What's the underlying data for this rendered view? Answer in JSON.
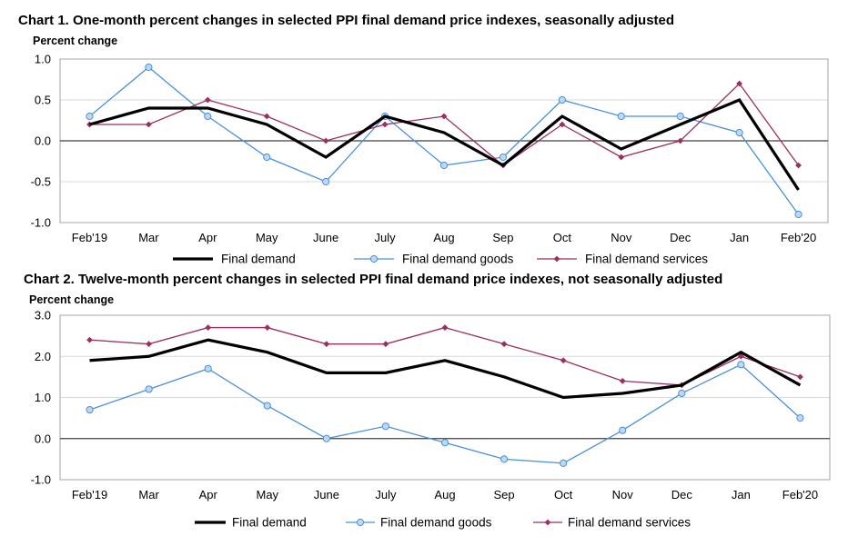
{
  "chart_data": [
    {
      "type": "line",
      "title": "Chart 1. One-month percent changes in selected PPI final demand price indexes, seasonally adjusted",
      "ylabel": "Percent change",
      "xlabel": "",
      "ylim": [
        -1.0,
        1.0
      ],
      "yticks": [
        1.0,
        0.5,
        0.0,
        -0.5,
        -1.0
      ],
      "ytick_labels": [
        "1.0",
        "0.5",
        "0.0",
        "-0.5",
        "-1.0"
      ],
      "categories": [
        "Feb'19",
        "Mar",
        "Apr",
        "May",
        "June",
        "July",
        "Aug",
        "Sep",
        "Oct",
        "Nov",
        "Dec",
        "Jan",
        "Feb'20"
      ],
      "grid": true,
      "legend_position": "bottom",
      "series": [
        {
          "name": "Final demand",
          "color": "#000000",
          "marker": "none",
          "values": [
            0.2,
            0.4,
            0.4,
            0.2,
            -0.2,
            0.3,
            0.1,
            -0.3,
            0.3,
            -0.1,
            0.2,
            0.5,
            -0.6
          ]
        },
        {
          "name": "Final demand goods",
          "color": "#4a90d9",
          "marker": "circle",
          "values": [
            0.3,
            0.9,
            0.3,
            -0.2,
            -0.5,
            0.3,
            -0.3,
            -0.2,
            0.5,
            0.3,
            0.3,
            0.1,
            -0.9
          ]
        },
        {
          "name": "Final demand services",
          "color": "#9b2f5f",
          "marker": "diamond",
          "values": [
            0.2,
            0.2,
            0.5,
            0.3,
            0.0,
            0.2,
            0.3,
            -0.3,
            0.2,
            -0.2,
            0.0,
            0.7,
            -0.3
          ]
        }
      ]
    },
    {
      "type": "line",
      "title": "Chart 2. Twelve-month percent changes in selected PPI final demand price indexes, not seasonally adjusted",
      "ylabel": "Percent change",
      "xlabel": "",
      "ylim": [
        -1.0,
        3.0
      ],
      "yticks": [
        3.0,
        2.0,
        1.0,
        0.0,
        -1.0
      ],
      "ytick_labels": [
        "3.0",
        "2.0",
        "1.0",
        "0.0",
        "-1.0"
      ],
      "categories": [
        "Feb'19",
        "Mar",
        "Apr",
        "May",
        "June",
        "July",
        "Aug",
        "Sep",
        "Oct",
        "Nov",
        "Dec",
        "Jan",
        "Feb'20"
      ],
      "grid": true,
      "legend_position": "bottom",
      "series": [
        {
          "name": "Final demand",
          "color": "#000000",
          "marker": "none",
          "values": [
            1.9,
            2.0,
            2.4,
            2.1,
            1.6,
            1.6,
            1.9,
            1.5,
            1.0,
            1.1,
            1.3,
            2.1,
            1.3
          ]
        },
        {
          "name": "Final demand goods",
          "color": "#4a90d9",
          "marker": "circle",
          "values": [
            0.7,
            1.2,
            1.7,
            0.8,
            0.0,
            0.3,
            -0.1,
            -0.5,
            -0.6,
            0.2,
            1.1,
            1.8,
            0.5
          ]
        },
        {
          "name": "Final demand services",
          "color": "#9b2f5f",
          "marker": "diamond",
          "values": [
            2.4,
            2.3,
            2.7,
            2.7,
            2.3,
            2.3,
            2.7,
            2.3,
            1.9,
            1.4,
            1.3,
            2.0,
            1.5
          ]
        }
      ]
    }
  ]
}
